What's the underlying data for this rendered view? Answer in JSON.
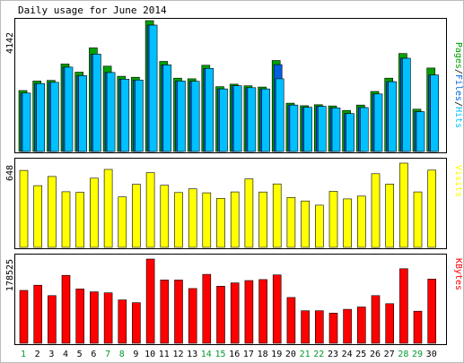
{
  "title": "Daily usage for June 2014",
  "colors": {
    "background": "#ffffff",
    "pages": "#00a000",
    "files": "#0060e0",
    "hits": "#00c0ff",
    "visits": "#ffff00",
    "kbytes": "#ff0000",
    "weekend_label": "#009a2e",
    "weekday_label": "#000000",
    "border": "#000000"
  },
  "chart_data": [
    {
      "type": "bar",
      "panel": "hits-files-pages",
      "right_label_parts": [
        {
          "text": "Pages",
          "color": "#00a000"
        },
        {
          "text": "/",
          "color": "#000000"
        },
        {
          "text": "Files",
          "color": "#0060e0"
        },
        {
          "text": "/",
          "color": "#000000"
        },
        {
          "text": "Hits",
          "color": "#00c0ff"
        }
      ],
      "ymax_label": "4142",
      "ylim": [
        0,
        4142
      ],
      "categories": [
        "1",
        "2",
        "3",
        "4",
        "5",
        "6",
        "7",
        "8",
        "9",
        "10",
        "11",
        "12",
        "13",
        "14",
        "15",
        "16",
        "17",
        "18",
        "19",
        "20",
        "21",
        "22",
        "23",
        "24",
        "25",
        "26",
        "27",
        "28",
        "29",
        "30"
      ],
      "series": [
        {
          "name": "Pages",
          "color": "#00a000",
          "values": [
            1930,
            2230,
            2250,
            2770,
            2510,
            3280,
            2700,
            2380,
            2350,
            4142,
            2850,
            2320,
            2300,
            2730,
            2050,
            2130,
            2080,
            2040,
            2880,
            1530,
            1450,
            1480,
            1440,
            1300,
            1470,
            1900,
            2320,
            3100,
            1340,
            2640
          ]
        },
        {
          "name": "Files",
          "color": "#0060e0",
          "values": [
            1850,
            2150,
            2190,
            2670,
            2400,
            3080,
            2500,
            2290,
            2260,
            4000,
            2740,
            2230,
            2220,
            2630,
            1980,
            2080,
            2020,
            1980,
            2750,
            1470,
            1400,
            1430,
            1380,
            1200,
            1390,
            1820,
            2210,
            2950,
            1260,
            2420
          ]
        },
        {
          "name": "Hits",
          "color": "#00c0ff",
          "values": [
            1850,
            2150,
            2190,
            2670,
            2400,
            3080,
            2500,
            2290,
            2260,
            4000,
            2740,
            2230,
            2220,
            2630,
            1980,
            2080,
            2020,
            1980,
            2300,
            1470,
            1400,
            1430,
            1380,
            1200,
            1390,
            1820,
            2210,
            2950,
            1260,
            2420
          ]
        }
      ]
    },
    {
      "type": "bar",
      "panel": "visits",
      "right_label": "Visits",
      "ymax_label": "648",
      "ylim": [
        0,
        648
      ],
      "categories": [
        "1",
        "2",
        "3",
        "4",
        "5",
        "6",
        "7",
        "8",
        "9",
        "10",
        "11",
        "12",
        "13",
        "14",
        "15",
        "16",
        "17",
        "18",
        "19",
        "20",
        "21",
        "22",
        "23",
        "24",
        "25",
        "26",
        "27",
        "28",
        "29",
        "30"
      ],
      "series": [
        {
          "name": "Visits",
          "color": "#ffff00",
          "values": [
            592,
            475,
            545,
            428,
            423,
            532,
            600,
            388,
            485,
            575,
            478,
            422,
            450,
            420,
            377,
            427,
            527,
            426,
            488,
            384,
            357,
            325,
            431,
            373,
            394,
            567,
            487,
            648,
            427,
            594
          ]
        }
      ]
    },
    {
      "type": "bar",
      "panel": "kbytes",
      "right_label": "KBytes",
      "ymax_label": "178525",
      "ylim": [
        0,
        178525
      ],
      "categories": [
        "1",
        "2",
        "3",
        "4",
        "5",
        "6",
        "7",
        "8",
        "9",
        "10",
        "11",
        "12",
        "13",
        "14",
        "15",
        "16",
        "17",
        "18",
        "19",
        "20",
        "21",
        "22",
        "23",
        "24",
        "25",
        "26",
        "27",
        "28",
        "29",
        "30"
      ],
      "series": [
        {
          "name": "KBytes",
          "color": "#ff0000",
          "values": [
            112000,
            123000,
            101000,
            144000,
            115000,
            109000,
            107000,
            92000,
            86000,
            178525,
            134000,
            134000,
            116000,
            146000,
            121000,
            128000,
            133000,
            135000,
            145000,
            97000,
            69000,
            69000,
            64000,
            72000,
            77000,
            101000,
            84000,
            158000,
            68000,
            136000
          ]
        }
      ]
    }
  ],
  "x_axis": {
    "labels": [
      "1",
      "2",
      "3",
      "4",
      "5",
      "6",
      "7",
      "8",
      "9",
      "10",
      "11",
      "12",
      "13",
      "14",
      "15",
      "16",
      "17",
      "18",
      "19",
      "20",
      "21",
      "22",
      "23",
      "24",
      "25",
      "26",
      "27",
      "28",
      "29",
      "30"
    ],
    "weekend": [
      true,
      false,
      false,
      false,
      false,
      false,
      true,
      true,
      false,
      false,
      false,
      false,
      false,
      true,
      true,
      false,
      false,
      false,
      false,
      false,
      true,
      true,
      false,
      false,
      false,
      false,
      false,
      true,
      true,
      false
    ]
  }
}
